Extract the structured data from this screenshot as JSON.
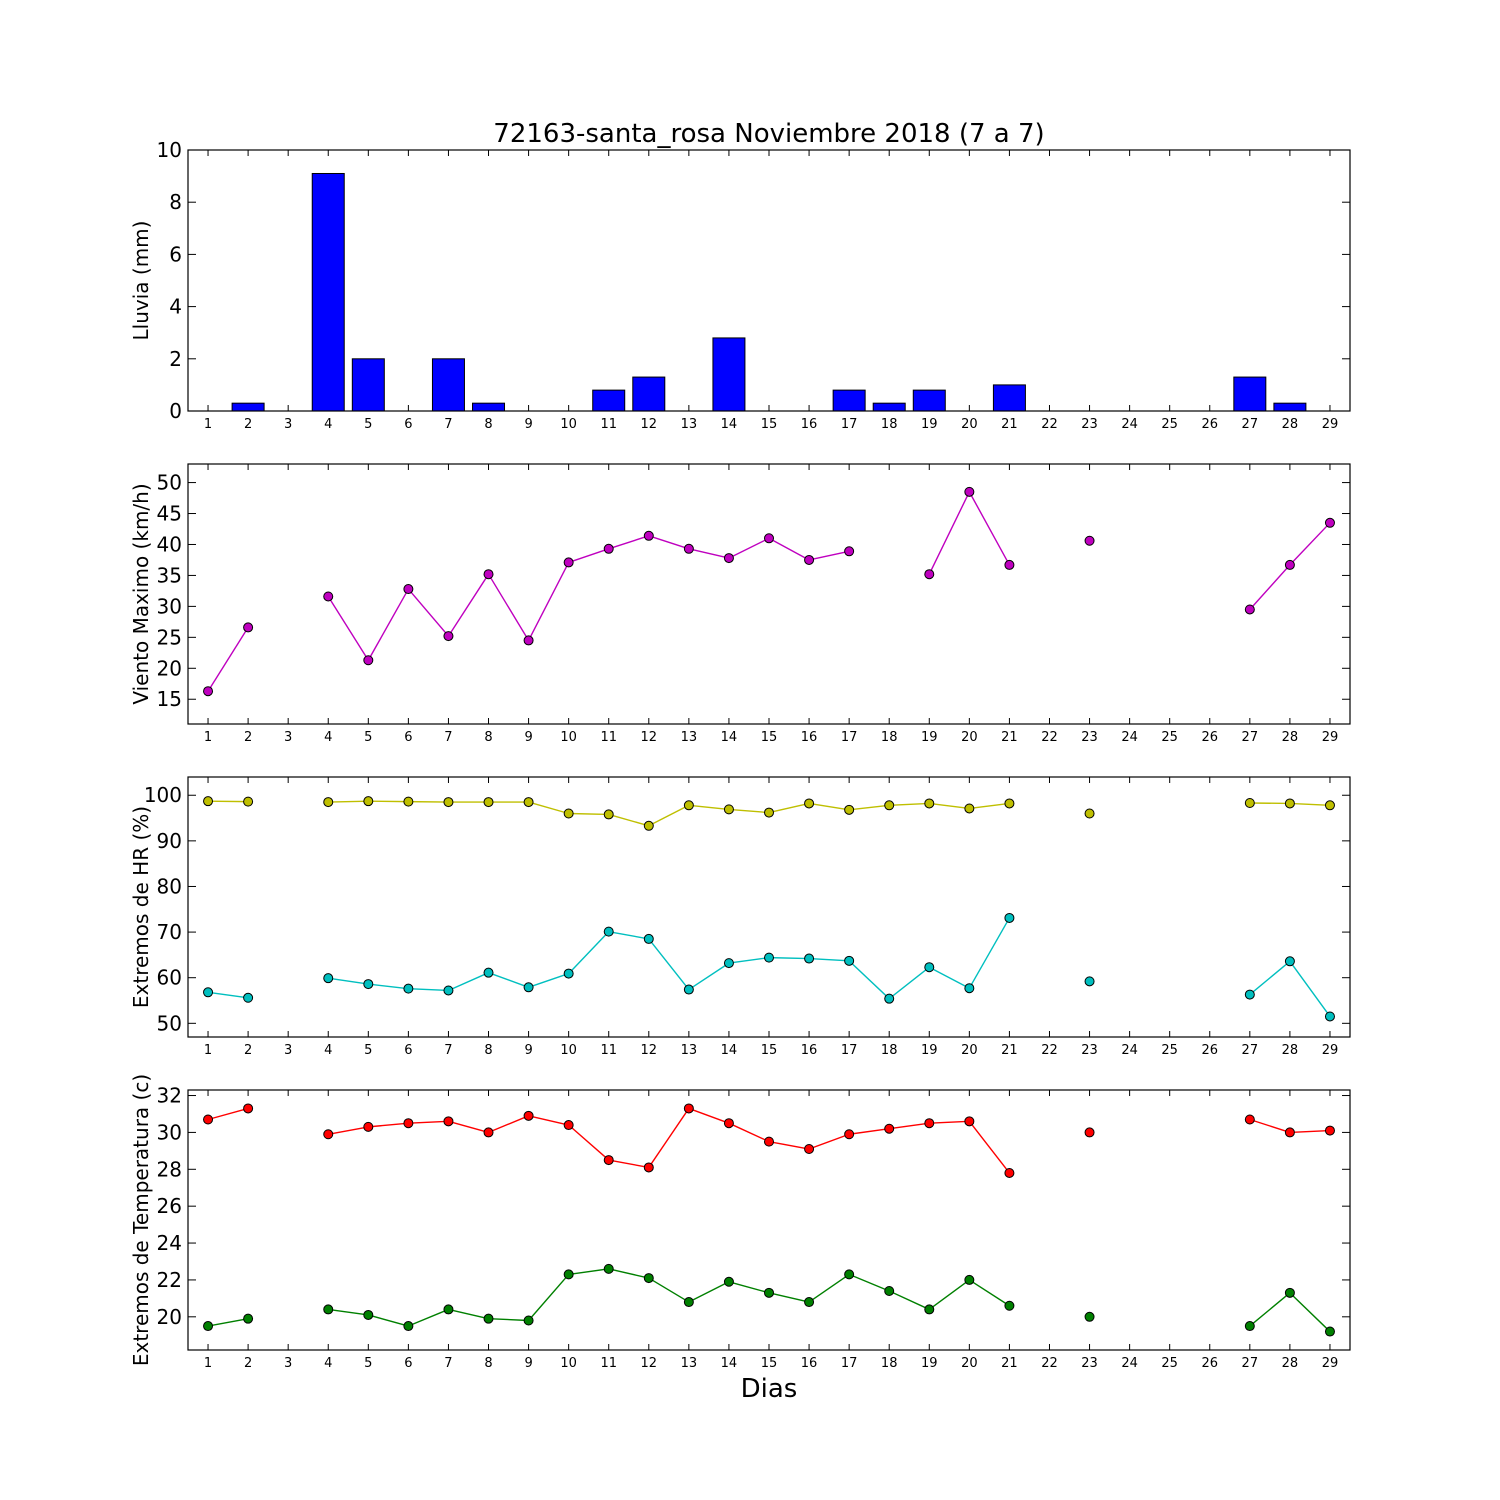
{
  "title": "72163-santa_rosa Noviembre 2018  (7 a 7)",
  "xlabel": "Dias",
  "chart_data": [
    {
      "type": "bar",
      "ylabel": "Lluvia (mm)",
      "ylim": [
        0,
        10
      ],
      "yticks": [
        0,
        2,
        4,
        6,
        8,
        10
      ],
      "x": [
        1,
        2,
        3,
        4,
        5,
        6,
        7,
        8,
        9,
        10,
        11,
        12,
        13,
        14,
        15,
        16,
        17,
        18,
        19,
        20,
        21,
        22,
        23,
        24,
        25,
        26,
        27,
        28,
        29
      ],
      "series": [
        {
          "color": "#0000ff",
          "values": [
            0,
            0.3,
            null,
            9.1,
            2.0,
            0,
            2.0,
            0.3,
            0,
            0,
            0.8,
            1.3,
            null,
            2.8,
            0,
            0,
            0.8,
            0.3,
            0.8,
            0,
            1.0,
            null,
            0,
            null,
            null,
            null,
            1.3,
            0.3,
            null
          ]
        }
      ]
    },
    {
      "type": "line",
      "ylabel": "Viento Maximo (km/h)",
      "ylim": [
        11,
        53
      ],
      "yticks": [
        15,
        20,
        25,
        30,
        35,
        40,
        45,
        50
      ],
      "x": [
        1,
        2,
        3,
        4,
        5,
        6,
        7,
        8,
        9,
        10,
        11,
        12,
        13,
        14,
        15,
        16,
        17,
        18,
        19,
        20,
        21,
        22,
        23,
        24,
        25,
        26,
        27,
        28,
        29
      ],
      "series": [
        {
          "color": "#bf00bf",
          "values": [
            16.3,
            26.6,
            null,
            31.6,
            21.3,
            32.8,
            25.2,
            35.2,
            24.5,
            37.1,
            39.3,
            41.4,
            39.3,
            37.8,
            41.0,
            37.5,
            38.9,
            null,
            35.2,
            48.5,
            36.7,
            null,
            40.6,
            null,
            null,
            null,
            29.5,
            36.7,
            43.5
          ]
        }
      ]
    },
    {
      "type": "line",
      "ylabel": "Extremos de HR (%)",
      "ylim": [
        47,
        104
      ],
      "yticks": [
        50,
        60,
        70,
        80,
        90,
        100
      ],
      "x": [
        1,
        2,
        3,
        4,
        5,
        6,
        7,
        8,
        9,
        10,
        11,
        12,
        13,
        14,
        15,
        16,
        17,
        18,
        19,
        20,
        21,
        22,
        23,
        24,
        25,
        26,
        27,
        28,
        29
      ],
      "series": [
        {
          "color": "#bfbf00",
          "values": [
            98.7,
            98.6,
            null,
            98.5,
            98.7,
            98.6,
            98.5,
            98.5,
            98.5,
            96.0,
            95.8,
            93.3,
            97.8,
            96.9,
            96.2,
            98.2,
            96.8,
            97.8,
            98.2,
            97.1,
            98.2,
            null,
            96.0,
            null,
            null,
            null,
            98.3,
            98.2,
            97.8
          ]
        },
        {
          "color": "#00bfbf",
          "values": [
            56.8,
            55.6,
            null,
            59.9,
            58.6,
            57.6,
            57.2,
            61.1,
            57.9,
            60.9,
            70.1,
            68.5,
            57.4,
            63.2,
            64.4,
            64.2,
            63.7,
            55.4,
            62.3,
            57.7,
            73.1,
            null,
            59.2,
            null,
            null,
            null,
            56.3,
            63.6,
            51.5
          ]
        }
      ]
    },
    {
      "type": "line",
      "ylabel": "Extremos de Temperatura (c)",
      "ylim": [
        18.2,
        32.3
      ],
      "yticks": [
        20,
        22,
        24,
        26,
        28,
        30,
        32
      ],
      "x": [
        1,
        2,
        3,
        4,
        5,
        6,
        7,
        8,
        9,
        10,
        11,
        12,
        13,
        14,
        15,
        16,
        17,
        18,
        19,
        20,
        21,
        22,
        23,
        24,
        25,
        26,
        27,
        28,
        29
      ],
      "series": [
        {
          "color": "#ff0000",
          "values": [
            30.7,
            31.3,
            null,
            29.9,
            30.3,
            30.5,
            30.6,
            30.0,
            30.9,
            30.4,
            28.5,
            28.1,
            31.3,
            30.5,
            29.5,
            29.1,
            29.9,
            30.2,
            30.5,
            30.6,
            27.8,
            null,
            30.0,
            null,
            null,
            null,
            30.7,
            30.0,
            30.1
          ]
        },
        {
          "color": "#008000",
          "values": [
            19.5,
            19.9,
            null,
            20.4,
            20.1,
            19.5,
            20.4,
            19.9,
            19.8,
            22.3,
            22.6,
            22.1,
            20.8,
            21.9,
            21.3,
            20.8,
            22.3,
            21.4,
            20.4,
            22.0,
            20.6,
            null,
            20.0,
            null,
            null,
            null,
            19.5,
            21.3,
            19.2
          ]
        }
      ]
    }
  ]
}
